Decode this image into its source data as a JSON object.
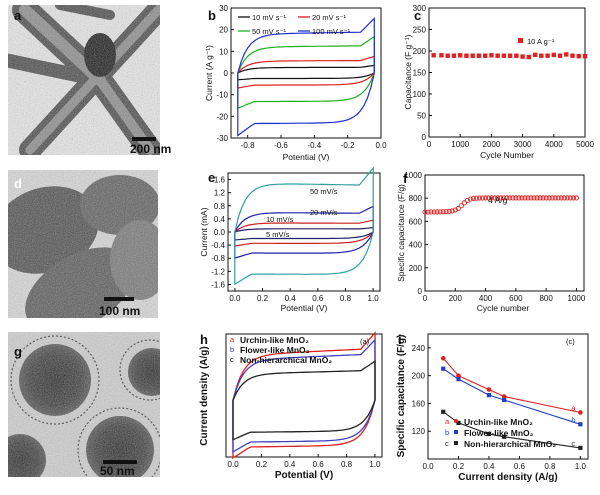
{
  "panel_labels": {
    "a": "a",
    "b": "b",
    "c": "c",
    "d": "d",
    "e": "e",
    "f": "f",
    "g": "g",
    "h": "h",
    "i": "i"
  },
  "micrographs": {
    "a": {
      "scale_bar": "200 nm"
    },
    "d": {
      "scale_bar": "100 nm"
    },
    "g": {
      "scale_bar": "50 nm"
    }
  },
  "chart_data": [
    {
      "panel": "b",
      "type": "line",
      "xlabel": "Potential (V)",
      "ylabel": "Current (A g⁻¹)",
      "xlim": [
        -0.9,
        0.0
      ],
      "ylim": [
        -30,
        30
      ],
      "xticks": [
        "-0.8",
        "-0.6",
        "-0.4",
        "-0.2",
        "0.0"
      ],
      "yticks": [
        "30",
        "20",
        "10",
        "0",
        "-10",
        "-20",
        "-30"
      ],
      "series": [
        {
          "name": "10 mV s⁻¹",
          "color": "#111111",
          "upper": 2.5,
          "lower": -2.5
        },
        {
          "name": "20 mV s⁻¹",
          "color": "#e02020",
          "upper": 5.5,
          "lower": -5.5
        },
        {
          "name": "50 mV s⁻¹",
          "color": "#20b020",
          "upper": 12,
          "lower": -13
        },
        {
          "name": "100 mV s⁻¹",
          "color": "#2030d0",
          "upper": 18,
          "lower": -23
        }
      ]
    },
    {
      "panel": "c",
      "type": "scatter",
      "xlabel": "Cycle Number",
      "ylabel": "Capacitance (F g⁻¹)",
      "xlim": [
        0,
        5000
      ],
      "ylim": [
        0,
        300
      ],
      "xticks": [
        "0",
        "1000",
        "2000",
        "3000",
        "4000",
        "5000"
      ],
      "yticks": [
        "0",
        "50",
        "100",
        "150",
        "200",
        "250",
        "300"
      ],
      "series": [
        {
          "name": "10 A g⁻¹",
          "color": "#e02020",
          "x": [
            150,
            400,
            600,
            800,
            1000,
            1200,
            1400,
            1600,
            1800,
            2000,
            2200,
            2400,
            2600,
            2800,
            3000,
            3200,
            3400,
            3600,
            3800,
            4000,
            4200,
            4400,
            4600,
            4800,
            5000
          ],
          "y": [
            190,
            190,
            189,
            189,
            190,
            189,
            189,
            189,
            189,
            190,
            189,
            189,
            189,
            189,
            187,
            186,
            191,
            189,
            189,
            191,
            189,
            192,
            189,
            188,
            188
          ]
        }
      ]
    },
    {
      "panel": "e",
      "type": "line",
      "xlabel": "Potential (V)",
      "ylabel": "Current (mA)",
      "xlim": [
        -0.05,
        1.05
      ],
      "ylim": [
        -1.8,
        1.8
      ],
      "xticks": [
        "0.0",
        "0.2",
        "0.4",
        "0.6",
        "0.8",
        "1.0"
      ],
      "yticks": [
        "1.6",
        "1.2",
        "0.8",
        "0.4",
        "0.0",
        "-0.4",
        "-0.8",
        "-1.2",
        "-1.6"
      ],
      "series": [
        {
          "name": "5 mV/s",
          "color": "#222266",
          "upper": 0.1,
          "lower": -0.2
        },
        {
          "name": "10 mV/s",
          "color": "#cc2020",
          "upper": 0.28,
          "lower": -0.35
        },
        {
          "name": "20 mV/s",
          "color": "#2020aa",
          "upper": 0.6,
          "lower": -0.65
        },
        {
          "name": "50 mV/s",
          "color": "#30a0a0",
          "upper": 1.5,
          "lower": -1.3
        }
      ],
      "labels": [
        "50 mV/s",
        "20 mV/s",
        "10 mV/s",
        "5 mV/s"
      ]
    },
    {
      "panel": "f",
      "type": "scatter",
      "xlabel": "Cycle number",
      "ylabel": "Specific capacitance (F/g)",
      "xlim": [
        0,
        1050
      ],
      "ylim": [
        0,
        1000
      ],
      "xticks": [
        "0",
        "200",
        "400",
        "600",
        "800",
        "1000"
      ],
      "yticks": [
        "0",
        "200",
        "400",
        "600",
        "800",
        "1000"
      ],
      "annotation": "4 A/g",
      "series": [
        {
          "name": "4 A/g",
          "color": "#e02020",
          "x": [
            0,
            20,
            40,
            60,
            80,
            100,
            120,
            140,
            160,
            180,
            200,
            220,
            240,
            260,
            280,
            300,
            320,
            340,
            360,
            380,
            400,
            420,
            440,
            460,
            480,
            500,
            520,
            540,
            560,
            580,
            600,
            620,
            640,
            660,
            680,
            700,
            720,
            740,
            760,
            780,
            800,
            820,
            840,
            860,
            880,
            900,
            920,
            940,
            960,
            980,
            1000
          ],
          "y": [
            680,
            680,
            681,
            681,
            682,
            682,
            683,
            684,
            686,
            690,
            698,
            712,
            735,
            760,
            780,
            792,
            798,
            800,
            801,
            801,
            802,
            802,
            802,
            802,
            802,
            802,
            802,
            802,
            802,
            802,
            802,
            802,
            802,
            802,
            802,
            802,
            802,
            802,
            802,
            802,
            802,
            802,
            802,
            802,
            802,
            802,
            802,
            802,
            802,
            802,
            802
          ]
        }
      ]
    },
    {
      "panel": "h",
      "type": "line",
      "tag": "(a)",
      "xlabel": "Potential (V)",
      "ylabel": "Current density (A/g)",
      "xlim": [
        -0.05,
        1.05
      ],
      "ylim": [
        -1.2,
        1.4
      ],
      "xticks": [
        "0.0",
        "0.2",
        "0.4",
        "0.6",
        "0.8",
        "1.0"
      ],
      "series": [
        {
          "name": "Urchin-like MnO₂",
          "marker": "a",
          "color": "#e02020",
          "upper": 0.95,
          "lower": -0.95
        },
        {
          "name": "Flower-like MnO₂",
          "marker": "b",
          "color": "#4040c0",
          "upper": 0.85,
          "lower": -0.85
        },
        {
          "name": "Non-hierarchical MnO₂",
          "marker": "c",
          "color": "#222222",
          "upper": 0.55,
          "lower": -0.65
        }
      ]
    },
    {
      "panel": "i",
      "type": "line",
      "tag": "(c)",
      "xlabel": "Current density (A/g)",
      "ylabel": "Specific capacitance (F/g)",
      "xlim": [
        0.0,
        1.05
      ],
      "ylim": [
        80,
        260
      ],
      "xticks": [
        "0.0",
        "0.2",
        "0.4",
        "0.6",
        "0.8",
        "1.0"
      ],
      "yticks": [
        "240",
        "200",
        "160",
        "120"
      ],
      "series": [
        {
          "name": "Urchin-like MnO₂",
          "marker": "a",
          "color": "#e02020",
          "x": [
            0.1,
            0.2,
            0.4,
            0.5,
            1.0
          ],
          "y": [
            225,
            200,
            180,
            170,
            147
          ]
        },
        {
          "name": "Flower-like MnO₂",
          "marker": "b",
          "color": "#2040c0",
          "x": [
            0.1,
            0.2,
            0.4,
            0.5,
            1.0
          ],
          "y": [
            210,
            195,
            172,
            165,
            130
          ]
        },
        {
          "name": "Non-hierarchical MnO₂",
          "marker": "c",
          "color": "#222222",
          "x": [
            0.1,
            0.2,
            0.4,
            0.5,
            1.0
          ],
          "y": [
            148,
            132,
            116,
            112,
            96
          ]
        }
      ]
    }
  ]
}
